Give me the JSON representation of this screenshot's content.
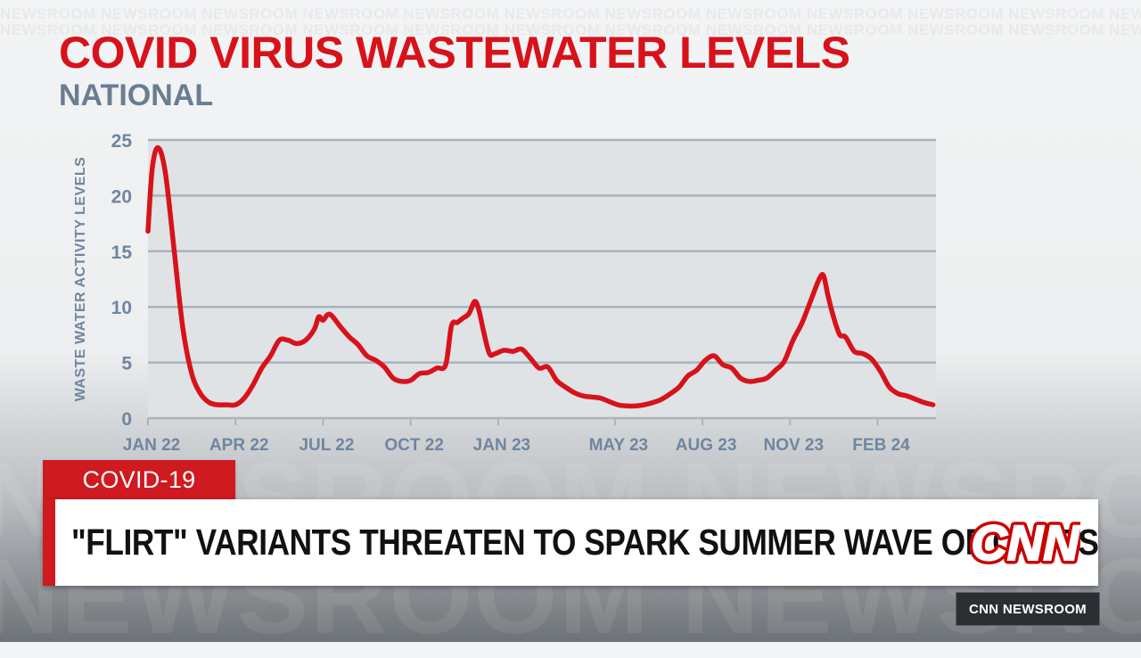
{
  "watermark": {
    "text": "NEWSROOM NEWSROOM NEWSROOM NEWSROOM NEWSROOM NEWSROOM NEWSROOM NEWSROOM NEWSROOM NEWSROOM NEWSROOM NEWSROOM NEWSROOM NEWSROOM",
    "big_text": "NEWSROOM NEWSROOM NEWSROOM"
  },
  "chart_data": {
    "type": "line",
    "title": "COVID VIRUS WASTEWATER LEVELS",
    "subtitle": "NATIONAL",
    "ylabel": "WASTE WATER ACTIVITY LEVELS",
    "xlabel": "",
    "ylim": [
      0,
      25
    ],
    "yticks": [
      0,
      5,
      10,
      15,
      20,
      25
    ],
    "xlim": [
      0,
      27
    ],
    "xticks": [
      {
        "x": 0,
        "label": "JAN 22"
      },
      {
        "x": 3,
        "label": "APR 22"
      },
      {
        "x": 6,
        "label": "JUL 22"
      },
      {
        "x": 9,
        "label": "OCT 22"
      },
      {
        "x": 12,
        "label": "JAN 23"
      },
      {
        "x": 16,
        "label": "MAY 23"
      },
      {
        "x": 19,
        "label": "AUG 23"
      },
      {
        "x": 22,
        "label": "NOV 23"
      },
      {
        "x": 25,
        "label": "FEB 24"
      }
    ],
    "grid": true,
    "line_color": "#d8121b",
    "series": [
      {
        "x": [
          0,
          0.15,
          0.35,
          0.6,
          0.9,
          1.2,
          1.5,
          1.8,
          2.1,
          2.4,
          2.7,
          3.0,
          3.3,
          3.6,
          3.9,
          4.2,
          4.5,
          4.8,
          5.1,
          5.4,
          5.7,
          5.85,
          6.0,
          6.15,
          6.3,
          6.6,
          6.9,
          7.2,
          7.5,
          7.8,
          8.1,
          8.4,
          8.7,
          9.0,
          9.3,
          9.6,
          9.9,
          10.2,
          10.4,
          10.6,
          10.8,
          11.0,
          11.2,
          11.35,
          11.5,
          11.7,
          11.9,
          12.2,
          12.5,
          12.8,
          13.1,
          13.4,
          13.7,
          14.0,
          14.3,
          14.6,
          14.9,
          15.2,
          15.5,
          15.8,
          16.1,
          16.4,
          16.7,
          17.0,
          17.3,
          17.6,
          17.9,
          18.2,
          18.5,
          18.8,
          19.1,
          19.4,
          19.7,
          20.0,
          20.3,
          20.6,
          20.9,
          21.2,
          21.5,
          21.8,
          22.1,
          22.4,
          22.7,
          23.0,
          23.15,
          23.3,
          23.5,
          23.7,
          23.9,
          24.2,
          24.5,
          24.8,
          25.1,
          25.4,
          25.7,
          26.0,
          26.3,
          26.6,
          26.9
        ],
        "values": [
          16.8,
          22.5,
          24.3,
          22.0,
          15.0,
          8.0,
          4.0,
          2.2,
          1.4,
          1.2,
          1.2,
          1.2,
          1.8,
          3.0,
          4.5,
          5.6,
          7.0,
          7.0,
          6.7,
          7.0,
          8.0,
          9.1,
          8.8,
          9.3,
          9.2,
          8.2,
          7.3,
          6.6,
          5.6,
          5.2,
          4.6,
          3.6,
          3.3,
          3.4,
          4.0,
          4.1,
          4.5,
          4.8,
          8.3,
          8.6,
          9.0,
          9.4,
          10.5,
          9.6,
          7.8,
          5.8,
          5.8,
          6.1,
          6.0,
          6.2,
          5.4,
          4.5,
          4.6,
          3.4,
          2.8,
          2.3,
          2.0,
          1.9,
          1.8,
          1.5,
          1.2,
          1.1,
          1.1,
          1.2,
          1.4,
          1.7,
          2.2,
          2.8,
          3.8,
          4.3,
          5.2,
          5.6,
          4.8,
          4.5,
          3.6,
          3.3,
          3.4,
          3.6,
          4.3,
          5.1,
          7.0,
          8.5,
          10.5,
          12.5,
          12.8,
          11.0,
          9.0,
          7.5,
          7.3,
          6.0,
          5.8,
          5.3,
          4.2,
          2.8,
          2.2,
          2.0,
          1.7,
          1.4,
          1.2
        ]
      }
    ]
  },
  "lower_third": {
    "tag": "COVID-19",
    "headline": "\"FLIRT\" VARIANTS THREATEN TO SPARK SUMMER WAVE OF CASES",
    "logo_text": "CNN",
    "show_name": "CNN NEWSROOM"
  }
}
